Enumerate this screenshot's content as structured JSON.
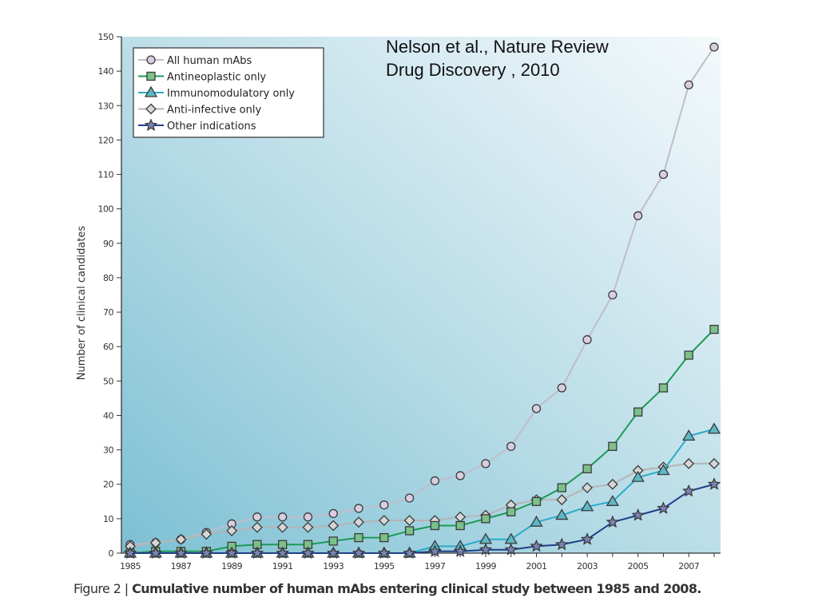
{
  "citation": {
    "line1": "Nelson et al., Nature Review",
    "line2": "Drug Discovery , 2010"
  },
  "caption": {
    "prefix": "Figure 2 | ",
    "text": "Cumulative number of human mAbs entering clinical study between 1985 and 2008."
  },
  "chart_data": {
    "type": "line",
    "title": "Cumulative number of human mAbs entering clinical study between 1985 and 2008.",
    "xlabel": "",
    "ylabel": "Number of clinical candidates",
    "x": [
      1985,
      1986,
      1987,
      1988,
      1989,
      1990,
      1991,
      1992,
      1993,
      1994,
      1995,
      1996,
      1997,
      1998,
      1999,
      2000,
      2001,
      2002,
      2003,
      2004,
      2005,
      2006,
      2007,
      2008
    ],
    "xticks": [
      "1985",
      "1987",
      "1989",
      "1991",
      "1993",
      "1995",
      "1997",
      "1999",
      "2001",
      "2003",
      "2005",
      "2007"
    ],
    "xlim": [
      1985,
      2008
    ],
    "ylim": [
      0,
      150
    ],
    "yticks": [
      "0",
      "10",
      "20",
      "30",
      "40",
      "50",
      "60",
      "70",
      "80",
      "90",
      "100",
      "110",
      "120",
      "130",
      "140",
      "150"
    ],
    "grid": false,
    "legend_position": "top-left",
    "series": [
      {
        "name": "All human mAbs",
        "marker": "circle",
        "color": "#c0bccb",
        "fill": "#d9cde0",
        "values": [
          2.5,
          3,
          4,
          6,
          8.5,
          10.5,
          10.5,
          10.5,
          11.5,
          13,
          14,
          16,
          21,
          22.5,
          26,
          31,
          42,
          48,
          62,
          75,
          98,
          110,
          136,
          147
        ]
      },
      {
        "name": "Antineoplastic only",
        "marker": "square",
        "color": "#1d9a55",
        "fill": "#7cc08a",
        "values": [
          0,
          0.5,
          0.5,
          0.5,
          2,
          2.5,
          2.5,
          2.5,
          3.5,
          4.5,
          4.5,
          6.5,
          8,
          8,
          10,
          12,
          15,
          19,
          24.5,
          31,
          41,
          48,
          57.5,
          65
        ]
      },
      {
        "name": "Immunomodulatory only",
        "marker": "triangle",
        "color": "#2aabc9",
        "fill": "#5fb7c6",
        "values": [
          0,
          0,
          0,
          0,
          0,
          0,
          0,
          0,
          0,
          0,
          0,
          0,
          2,
          2,
          4,
          4,
          9,
          11,
          13.5,
          15,
          22,
          24,
          34,
          36
        ]
      },
      {
        "name": "Anti-infective only",
        "marker": "diamond",
        "color": "#b5b5b5",
        "fill": "#d6d6d6",
        "values": [
          2,
          3,
          4,
          5.5,
          6.5,
          7.5,
          7.5,
          7.5,
          8,
          9,
          9.5,
          9.5,
          9.5,
          10.5,
          11,
          14,
          15.5,
          15.5,
          19,
          20,
          24,
          25,
          26,
          26
        ]
      },
      {
        "name": "Other indications",
        "marker": "star",
        "color": "#1f3f88",
        "fill": "#7b82b5",
        "values": [
          0,
          0,
          0,
          0,
          0,
          0,
          0,
          0,
          0,
          0,
          0,
          0,
          0.5,
          0.5,
          1,
          1,
          2,
          2.5,
          4,
          9,
          11,
          13,
          18,
          20
        ]
      }
    ]
  }
}
